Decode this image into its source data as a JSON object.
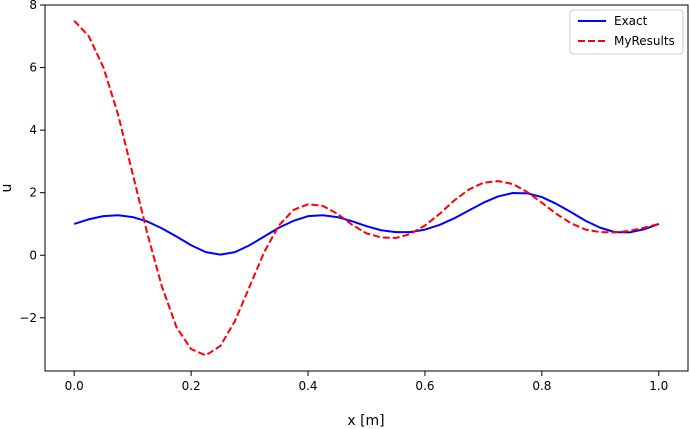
{
  "chart_data": {
    "type": "line",
    "xlabel": "x [m]",
    "ylabel": "u",
    "xlim": [
      -0.05,
      1.05
    ],
    "ylim": [
      -3.7,
      8.0
    ],
    "xticks": [
      0.0,
      0.2,
      0.4,
      0.6,
      0.8,
      1.0
    ],
    "xtick_labels": [
      "0.0",
      "0.2",
      "0.4",
      "0.6",
      "0.8",
      "1.0"
    ],
    "yticks": [
      -2,
      0,
      2,
      4,
      6,
      8
    ],
    "ytick_labels": [
      "−2",
      "0",
      "2",
      "4",
      "6",
      "8"
    ],
    "grid": false,
    "legend_position": "top-right",
    "series": [
      {
        "name": "Exact",
        "color": "#0000ff",
        "style": "solid",
        "x": [
          0.0,
          0.025,
          0.05,
          0.075,
          0.1,
          0.125,
          0.15,
          0.175,
          0.2,
          0.225,
          0.25,
          0.275,
          0.3,
          0.325,
          0.35,
          0.375,
          0.4,
          0.425,
          0.45,
          0.475,
          0.5,
          0.525,
          0.55,
          0.575,
          0.6,
          0.625,
          0.65,
          0.675,
          0.7,
          0.725,
          0.75,
          0.775,
          0.8,
          0.825,
          0.85,
          0.875,
          0.9,
          0.925,
          0.95,
          0.975,
          1.0
        ],
        "y": [
          1.0,
          1.15,
          1.25,
          1.28,
          1.22,
          1.08,
          0.86,
          0.6,
          0.32,
          0.1,
          0.02,
          0.1,
          0.32,
          0.6,
          0.88,
          1.1,
          1.25,
          1.28,
          1.22,
          1.09,
          0.93,
          0.8,
          0.74,
          0.74,
          0.82,
          0.97,
          1.18,
          1.43,
          1.68,
          1.88,
          1.99,
          1.98,
          1.86,
          1.64,
          1.38,
          1.1,
          0.88,
          0.74,
          0.73,
          0.83,
          1.0
        ]
      },
      {
        "name": "MyResults",
        "color": "#ff0000",
        "style": "dashed",
        "x": [
          0.0,
          0.025,
          0.05,
          0.075,
          0.1,
          0.125,
          0.15,
          0.175,
          0.2,
          0.225,
          0.25,
          0.275,
          0.3,
          0.325,
          0.35,
          0.375,
          0.4,
          0.425,
          0.45,
          0.475,
          0.5,
          0.525,
          0.55,
          0.575,
          0.6,
          0.625,
          0.65,
          0.675,
          0.7,
          0.725,
          0.75,
          0.775,
          0.8,
          0.825,
          0.85,
          0.875,
          0.9,
          0.925,
          0.95,
          0.975,
          1.0
        ],
        "y": [
          7.5,
          7.0,
          6.0,
          4.5,
          2.6,
          0.7,
          -1.0,
          -2.3,
          -3.0,
          -3.2,
          -2.9,
          -2.1,
          -1.0,
          0.1,
          0.95,
          1.45,
          1.63,
          1.58,
          1.33,
          0.98,
          0.7,
          0.57,
          0.55,
          0.68,
          0.95,
          1.32,
          1.75,
          2.1,
          2.32,
          2.37,
          2.28,
          2.02,
          1.68,
          1.32,
          1.02,
          0.82,
          0.74,
          0.73,
          0.78,
          0.88,
          1.0
        ]
      }
    ]
  }
}
